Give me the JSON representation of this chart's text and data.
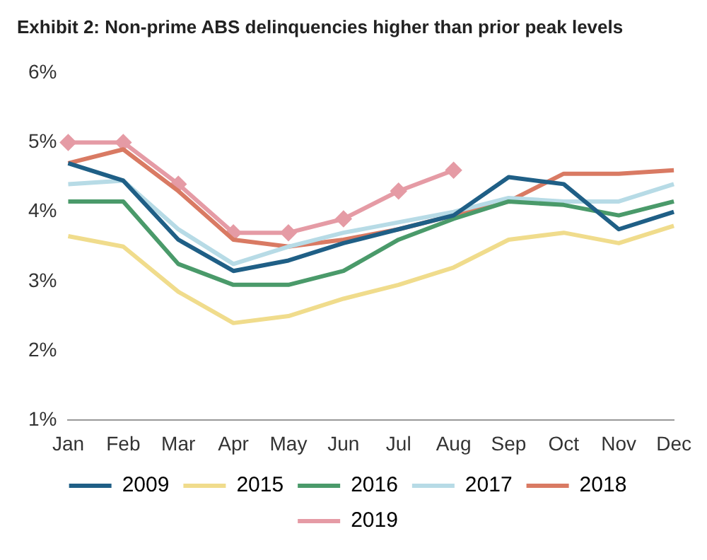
{
  "chart_data": {
    "type": "line",
    "title": "Exhibit 2: Non-prime ABS delinquencies higher than prior peak levels",
    "categories": [
      "Jan",
      "Feb",
      "Mar",
      "Apr",
      "May",
      "Jun",
      "Jul",
      "Aug",
      "Sep",
      "Oct",
      "Nov",
      "Dec"
    ],
    "series": [
      {
        "name": "2009",
        "color": "#1f5f86",
        "values": [
          4.7,
          4.45,
          3.6,
          3.15,
          3.3,
          3.55,
          3.75,
          3.95,
          4.5,
          4.4,
          3.75,
          4.0
        ]
      },
      {
        "name": "2015",
        "color": "#f0dc8c",
        "values": [
          3.65,
          3.5,
          2.85,
          2.4,
          2.5,
          2.75,
          2.95,
          3.2,
          3.6,
          3.7,
          3.55,
          3.8
        ]
      },
      {
        "name": "2016",
        "color": "#4a9a6a",
        "values": [
          4.15,
          4.15,
          3.25,
          2.95,
          2.95,
          3.15,
          3.6,
          3.9,
          4.15,
          4.1,
          3.95,
          4.15
        ]
      },
      {
        "name": "2017",
        "color": "#b7dbe6",
        "values": [
          4.4,
          4.45,
          3.75,
          3.25,
          3.5,
          3.7,
          3.85,
          4.0,
          4.2,
          4.15,
          4.15,
          4.4
        ]
      },
      {
        "name": "2018",
        "color": "#d97a63",
        "values": [
          4.7,
          4.9,
          4.3,
          3.6,
          3.5,
          3.6,
          3.75,
          3.95,
          4.15,
          4.55,
          4.55,
          4.6
        ]
      },
      {
        "name": "2019",
        "color": "#e59ba5",
        "marker": "diamond",
        "values": [
          5.0,
          5.0,
          4.4,
          3.7,
          3.7,
          3.9,
          4.3,
          4.6,
          null,
          null,
          null,
          null
        ]
      }
    ],
    "ylim": [
      1,
      6
    ],
    "yticks": [
      {
        "value": 1,
        "label": "1%"
      },
      {
        "value": 2,
        "label": "2%"
      },
      {
        "value": 3,
        "label": "3%"
      },
      {
        "value": 4,
        "label": "4%"
      },
      {
        "value": 5,
        "label": "5%"
      },
      {
        "value": 6,
        "label": "6%"
      }
    ],
    "grid": false,
    "legend": "bottom",
    "marker": "none"
  }
}
